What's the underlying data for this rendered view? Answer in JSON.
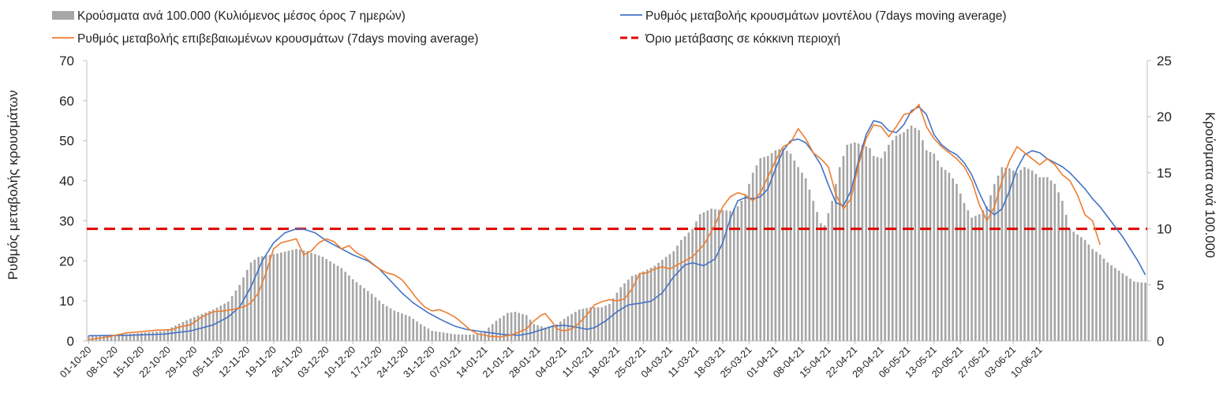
{
  "chart_data": {
    "type": "bar+line",
    "title": "",
    "legend": [
      {
        "key": "bars",
        "label": "Κρούσματα ανά 100.000 (Κυλιόμενος μέσος όρος 7 ημερών)",
        "color": "#a6a6a6"
      },
      {
        "key": "model",
        "label": "Ρυθμός μεταβολής κρουσμάτων μοντέλου (7days moving average)",
        "color": "#4472c4"
      },
      {
        "key": "confirmed",
        "label": "Ρυθμός μεταβολής επιβεβαιωμένων κρουσμάτων (7days moving average)",
        "color": "#ed7d31"
      },
      {
        "key": "threshold",
        "label": "Όριο μετάβασης σε κόκκινη περιοχή",
        "color": "#e00000"
      }
    ],
    "ylabel": "Ρυθμός μεταβολής κρουσμάτων",
    "y2label": "Κρούσματα ανά 100.000",
    "ylim": [
      0,
      70
    ],
    "y2lim": [
      0,
      25
    ],
    "yticks": [
      0,
      10,
      20,
      30,
      40,
      50,
      60,
      70
    ],
    "y2ticks": [
      0,
      5,
      10,
      15,
      20,
      25
    ],
    "threshold": 28,
    "x_day_count": 261,
    "x_labels": [
      "01-10-20",
      "08-10-20",
      "15-10-20",
      "22-10-20",
      "29-10-20",
      "05-11-20",
      "12-11-20",
      "19-11-20",
      "26-11-20",
      "03-12-20",
      "10-12-20",
      "17-12-20",
      "24-12-20",
      "31-12-20",
      "07-01-21",
      "14-01-21",
      "21-01-21",
      "28-01-21",
      "04-02-21",
      "11-02-21",
      "18-02-21",
      "25-02-21",
      "04-03-21",
      "11-03-21",
      "18-03-21",
      "25-03-21",
      "01-04-21",
      "08-04-21",
      "15-04-21",
      "22-04-21",
      "29-04-21",
      "06-05-21",
      "13-05-21",
      "20-05-21",
      "27-05-21",
      "03-06-21",
      "10-06-21"
    ],
    "bar_keypoints": [
      [
        0,
        0.5
      ],
      [
        10,
        0.6
      ],
      [
        20,
        0.9
      ],
      [
        27,
        2.0
      ],
      [
        33,
        2.8
      ],
      [
        37,
        3.5
      ],
      [
        40,
        5.0
      ],
      [
        43,
        7.0
      ],
      [
        45,
        7.5
      ],
      [
        50,
        7.8
      ],
      [
        55,
        8.2
      ],
      [
        58,
        8.0
      ],
      [
        62,
        7.5
      ],
      [
        67,
        6.5
      ],
      [
        70,
        5.5
      ],
      [
        75,
        4.2
      ],
      [
        78,
        3.3
      ],
      [
        81,
        2.7
      ],
      [
        85,
        2.2
      ],
      [
        88,
        1.5
      ],
      [
        91,
        0.9
      ],
      [
        97,
        0.6
      ],
      [
        100,
        0.55
      ],
      [
        103,
        0.6
      ],
      [
        105,
        0.9
      ],
      [
        108,
        1.8
      ],
      [
        111,
        2.5
      ],
      [
        113,
        2.6
      ],
      [
        116,
        2.3
      ],
      [
        118,
        1.5
      ],
      [
        121,
        1.2
      ],
      [
        124,
        1.5
      ],
      [
        127,
        2.2
      ],
      [
        130,
        2.8
      ],
      [
        133,
        3.0
      ],
      [
        136,
        3.0
      ],
      [
        138,
        3.3
      ],
      [
        141,
        4.8
      ],
      [
        144,
        5.8
      ],
      [
        147,
        6.2
      ],
      [
        150,
        6.7
      ],
      [
        153,
        7.5
      ],
      [
        155,
        8.0
      ],
      [
        157,
        9.0
      ],
      [
        160,
        10.0
      ],
      [
        162,
        11.3
      ],
      [
        165,
        11.8
      ],
      [
        167,
        11.7
      ],
      [
        170,
        11.6
      ],
      [
        172,
        12.0
      ],
      [
        174,
        13.0
      ],
      [
        176,
        15.0
      ],
      [
        178,
        16.3
      ],
      [
        180,
        16.5
      ],
      [
        182,
        17.0
      ],
      [
        184,
        17.2
      ],
      [
        186,
        16.7
      ],
      [
        188,
        15.5
      ],
      [
        190,
        14.5
      ],
      [
        192,
        12.5
      ],
      [
        194,
        10.5
      ],
      [
        195,
        10.3
      ],
      [
        197,
        12.5
      ],
      [
        199,
        15.5
      ],
      [
        201,
        17.5
      ],
      [
        203,
        17.7
      ],
      [
        205,
        17.5
      ],
      [
        207,
        17.2
      ],
      [
        208,
        16.5
      ],
      [
        210,
        16.3
      ],
      [
        212,
        17.5
      ],
      [
        214,
        18.3
      ],
      [
        216,
        18.6
      ],
      [
        218,
        19.2
      ],
      [
        220,
        18.8
      ],
      [
        222,
        17.0
      ],
      [
        224,
        16.7
      ],
      [
        226,
        15.5
      ],
      [
        228,
        15.0
      ],
      [
        230,
        14.0
      ],
      [
        232,
        12.3
      ],
      [
        234,
        11.0
      ],
      [
        236,
        11.3
      ],
      [
        238,
        12.0
      ],
      [
        240,
        14.0
      ],
      [
        242,
        15.5
      ],
      [
        244,
        15.4
      ],
      [
        246,
        15.0
      ],
      [
        248,
        15.5
      ],
      [
        250,
        15.2
      ],
      [
        252,
        14.6
      ],
      [
        254,
        14.6
      ],
      [
        256,
        14.0
      ],
      [
        258,
        12.5
      ],
      [
        260,
        10.0
      ],
      [
        262,
        9.5
      ],
      [
        264,
        9.0
      ],
      [
        266,
        8.2
      ],
      [
        268,
        7.7
      ],
      [
        270,
        7.0
      ],
      [
        272,
        6.5
      ],
      [
        275,
        5.8
      ],
      [
        277,
        5.3
      ],
      [
        279,
        5.2
      ]
    ],
    "model_keypoints": [
      [
        0,
        1.3
      ],
      [
        10,
        1.4
      ],
      [
        20,
        1.7
      ],
      [
        27,
        2.5
      ],
      [
        33,
        4.0
      ],
      [
        37,
        6.0
      ],
      [
        40,
        8.5
      ],
      [
        43,
        13.5
      ],
      [
        46,
        20.0
      ],
      [
        49,
        24.5
      ],
      [
        52,
        27.0
      ],
      [
        55,
        28.0
      ],
      [
        57,
        27.9
      ],
      [
        60,
        27.0
      ],
      [
        63,
        25.0
      ],
      [
        66,
        23.5
      ],
      [
        70,
        21.5
      ],
      [
        74,
        20.0
      ],
      [
        77,
        18.0
      ],
      [
        80,
        15.0
      ],
      [
        83,
        12.0
      ],
      [
        86,
        9.5
      ],
      [
        90,
        7.0
      ],
      [
        94,
        5.0
      ],
      [
        97,
        3.7
      ],
      [
        100,
        2.9
      ],
      [
        105,
        2.2
      ],
      [
        110,
        1.6
      ],
      [
        114,
        1.4
      ],
      [
        117,
        1.9
      ],
      [
        120,
        2.8
      ],
      [
        123,
        3.7
      ],
      [
        126,
        3.9
      ],
      [
        129,
        3.5
      ],
      [
        132,
        2.9
      ],
      [
        134,
        3.3
      ],
      [
        137,
        5.0
      ],
      [
        140,
        7.3
      ],
      [
        143,
        9.0
      ],
      [
        146,
        9.4
      ],
      [
        149,
        9.9
      ],
      [
        152,
        12.0
      ],
      [
        155,
        16.0
      ],
      [
        158,
        19.0
      ],
      [
        160,
        19.5
      ],
      [
        163,
        18.8
      ],
      [
        166,
        20.5
      ],
      [
        168,
        24.5
      ],
      [
        170,
        30.5
      ],
      [
        172,
        35.0
      ],
      [
        174,
        35.8
      ],
      [
        176,
        35.5
      ],
      [
        178,
        36.0
      ],
      [
        180,
        38.0
      ],
      [
        182,
        43.0
      ],
      [
        184,
        47.5
      ],
      [
        186,
        50.0
      ],
      [
        188,
        50.4
      ],
      [
        190,
        49.5
      ],
      [
        192,
        47.0
      ],
      [
        194,
        44.0
      ],
      [
        196,
        39.0
      ],
      [
        198,
        34.5
      ],
      [
        200,
        33.8
      ],
      [
        202,
        37.5
      ],
      [
        204,
        45.0
      ],
      [
        206,
        51.5
      ],
      [
        208,
        55.0
      ],
      [
        210,
        54.5
      ],
      [
        212,
        52.5
      ],
      [
        214,
        52.0
      ],
      [
        216,
        54.0
      ],
      [
        218,
        57.5
      ],
      [
        220,
        58.5
      ],
      [
        222,
        56.5
      ],
      [
        224,
        51.5
      ],
      [
        226,
        49.0
      ],
      [
        228,
        47.5
      ],
      [
        230,
        46.5
      ],
      [
        232,
        44.5
      ],
      [
        234,
        41.5
      ],
      [
        236,
        37.0
      ],
      [
        238,
        33.0
      ],
      [
        240,
        31.5
      ],
      [
        242,
        33.0
      ],
      [
        244,
        37.5
      ],
      [
        246,
        43.0
      ],
      [
        248,
        46.5
      ],
      [
        250,
        47.5
      ],
      [
        252,
        47.0
      ],
      [
        254,
        45.5
      ],
      [
        256,
        44.5
      ],
      [
        258,
        43.5
      ],
      [
        260,
        42.0
      ],
      [
        262,
        40.0
      ],
      [
        264,
        38.0
      ],
      [
        266,
        35.5
      ],
      [
        268,
        33.5
      ],
      [
        270,
        31.0
      ],
      [
        272,
        28.5
      ],
      [
        274,
        26.0
      ],
      [
        276,
        23.0
      ],
      [
        278,
        20.0
      ],
      [
        280,
        16.5
      ]
    ],
    "confirmed_keypoints": [
      [
        0,
        0.3
      ],
      [
        5,
        1.0
      ],
      [
        10,
        2.0
      ],
      [
        15,
        2.4
      ],
      [
        18,
        2.7
      ],
      [
        22,
        2.8
      ],
      [
        24,
        3.5
      ],
      [
        27,
        4.0
      ],
      [
        30,
        6.0
      ],
      [
        33,
        7.3
      ],
      [
        36,
        7.5
      ],
      [
        39,
        8.0
      ],
      [
        41,
        8.5
      ],
      [
        43,
        9.5
      ],
      [
        45,
        12.0
      ],
      [
        47,
        17.0
      ],
      [
        49,
        23.0
      ],
      [
        51,
        24.5
      ],
      [
        53,
        25.0
      ],
      [
        55,
        25.5
      ],
      [
        57,
        21.5
      ],
      [
        59,
        22.5
      ],
      [
        61,
        24.5
      ],
      [
        63,
        25.5
      ],
      [
        65,
        24.8
      ],
      [
        67,
        23.0
      ],
      [
        69,
        23.8
      ],
      [
        71,
        22.0
      ],
      [
        73,
        21.0
      ],
      [
        75,
        19.5
      ],
      [
        77,
        18.0
      ],
      [
        79,
        17.0
      ],
      [
        81,
        16.5
      ],
      [
        83,
        15.3
      ],
      [
        85,
        13.0
      ],
      [
        87,
        10.5
      ],
      [
        89,
        8.5
      ],
      [
        91,
        7.5
      ],
      [
        93,
        7.8
      ],
      [
        95,
        7.0
      ],
      [
        97,
        6.0
      ],
      [
        99,
        4.5
      ],
      [
        101,
        2.8
      ],
      [
        103,
        1.8
      ],
      [
        106,
        1.2
      ],
      [
        109,
        1.0
      ],
      [
        112,
        1.5
      ],
      [
        114,
        2.2
      ],
      [
        116,
        3.0
      ],
      [
        118,
        5.0
      ],
      [
        120,
        6.5
      ],
      [
        121,
        6.8
      ],
      [
        123,
        4.5
      ],
      [
        124,
        3.0
      ],
      [
        126,
        2.5
      ],
      [
        128,
        3.0
      ],
      [
        130,
        4.5
      ],
      [
        132,
        6.5
      ],
      [
        134,
        9.0
      ],
      [
        136,
        9.8
      ],
      [
        138,
        10.3
      ],
      [
        140,
        10.0
      ],
      [
        142,
        10.5
      ],
      [
        144,
        13.0
      ],
      [
        146,
        16.8
      ],
      [
        148,
        17.0
      ],
      [
        150,
        18.0
      ],
      [
        152,
        18.5
      ],
      [
        154,
        18.0
      ],
      [
        156,
        19.0
      ],
      [
        158,
        20.0
      ],
      [
        160,
        21.0
      ],
      [
        163,
        24.0
      ],
      [
        166,
        29.0
      ],
      [
        168,
        33.5
      ],
      [
        170,
        36.0
      ],
      [
        172,
        37.0
      ],
      [
        174,
        36.5
      ],
      [
        176,
        35.0
      ],
      [
        178,
        37.0
      ],
      [
        180,
        41.0
      ],
      [
        182,
        45.0
      ],
      [
        184,
        48.5
      ],
      [
        186,
        49.5
      ],
      [
        188,
        53.0
      ],
      [
        190,
        50.5
      ],
      [
        192,
        47.0
      ],
      [
        194,
        45.5
      ],
      [
        196,
        43.5
      ],
      [
        198,
        36.5
      ],
      [
        200,
        33.0
      ],
      [
        202,
        35.5
      ],
      [
        204,
        44.0
      ],
      [
        206,
        50.5
      ],
      [
        208,
        54.0
      ],
      [
        210,
        53.5
      ],
      [
        212,
        51.0
      ],
      [
        214,
        53.5
      ],
      [
        216,
        56.5
      ],
      [
        218,
        57.0
      ],
      [
        220,
        59.0
      ],
      [
        222,
        53.5
      ],
      [
        224,
        50.5
      ],
      [
        226,
        48.5
      ],
      [
        228,
        47.0
      ],
      [
        230,
        45.5
      ],
      [
        232,
        43.5
      ],
      [
        234,
        40.0
      ],
      [
        236,
        34.0
      ],
      [
        238,
        30.0
      ],
      [
        240,
        33.5
      ],
      [
        242,
        40.0
      ],
      [
        244,
        45.0
      ],
      [
        246,
        48.5
      ],
      [
        248,
        47.0
      ],
      [
        250,
        45.5
      ],
      [
        252,
        44.0
      ],
      [
        254,
        45.5
      ],
      [
        256,
        44.0
      ],
      [
        258,
        41.5
      ],
      [
        260,
        40.0
      ],
      [
        262,
        36.5
      ],
      [
        264,
        31.5
      ],
      [
        266,
        30.0
      ],
      [
        268,
        24.0
      ]
    ]
  }
}
